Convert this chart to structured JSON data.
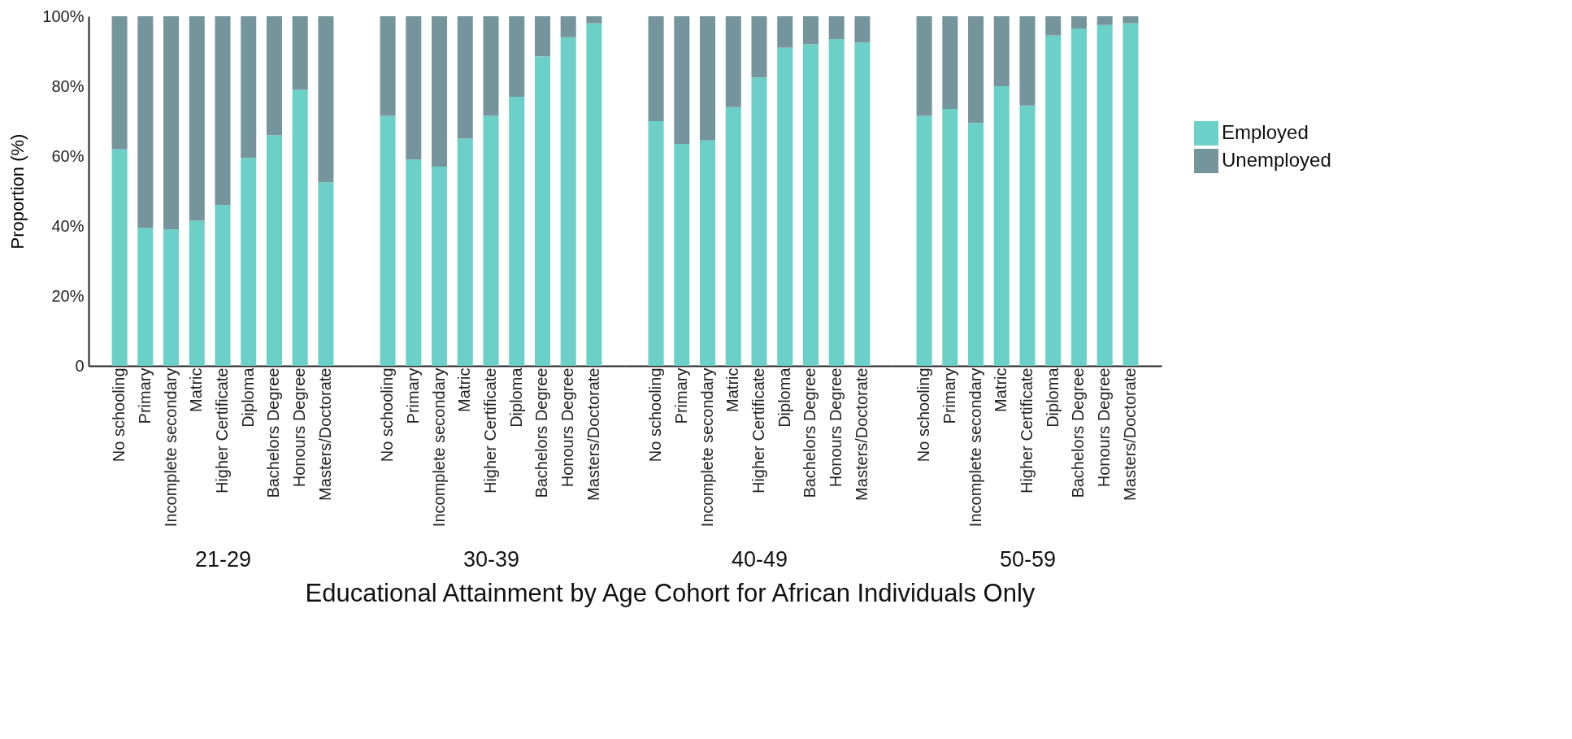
{
  "chart_data": [
    {
      "type": "bar",
      "stacked": true,
      "legend": "right",
      "xlabel": "21-29",
      "ylabel": "Proportion (%)",
      "annotations": [
        "Educational Attainment by Age Cohort for African Individuals Only"
      ],
      "categories": [
        "No schooling",
        "Primary",
        "Incomplete secondary",
        "Matric",
        "Higher Certificate",
        "Diploma",
        "Bachelors Degree",
        "Honours Degree",
        "Masters/Doctorate"
      ],
      "ylim": [
        0,
        100
      ],
      "yticks": [
        0,
        {
          "value": 20,
          "label": "20%"
        },
        {
          "value": 40,
          "label": "40%"
        },
        {
          "value": 60,
          "label": "60%"
        },
        {
          "value": 80,
          "label": "80%"
        },
        {
          "value": 100,
          "label": "100%"
        }
      ],
      "series": [
        {
          "name": "Employed",
          "color": "#6ad0c8",
          "values": [
            62,
            39.5,
            39,
            41.5,
            46,
            59.5,
            66,
            79,
            52.5
          ]
        },
        {
          "name": "Unemployed",
          "color": "#75959d",
          "values": [
            38,
            60.5,
            61,
            58.5,
            54,
            40.5,
            34,
            21,
            47.5
          ]
        }
      ]
    },
    {
      "type": "bar",
      "stacked": true,
      "xlabel": "30-39",
      "tick_labels": "x",
      "categories": [
        "No schooling",
        "Primary",
        "Incomplete secondary",
        "Matric",
        "Higher Certificate",
        "Diploma",
        "Bachelors Degree",
        "Honours Degree",
        "Masters/Doctorate"
      ],
      "ylim": [
        0,
        100
      ],
      "series": [
        {
          "name": "Employed",
          "color": "#6ad0c8",
          "values": [
            71.5,
            59,
            57,
            65,
            71.5,
            77,
            88.5,
            94,
            98
          ]
        },
        {
          "name": "Unemployed",
          "color": "#75959d",
          "values": [
            28.5,
            41,
            43,
            35,
            28.5,
            23,
            11.5,
            6,
            2
          ]
        }
      ]
    },
    {
      "type": "bar",
      "stacked": true,
      "xlabel": "40-49",
      "tick_labels": "x",
      "categories": [
        "No schooling",
        "Primary",
        "Incomplete secondary",
        "Matric",
        "Higher Certificate",
        "Diploma",
        "Bachelors Degree",
        "Honours Degree",
        "Masters/Doctorate"
      ],
      "ylim": [
        0,
        100
      ],
      "series": [
        {
          "name": "Employed",
          "color": "#6ad0c8",
          "values": [
            70,
            63.5,
            64.5,
            74,
            82.5,
            91,
            92,
            93.5,
            92.5
          ]
        },
        {
          "name": "Unemployed",
          "color": "#75959d",
          "values": [
            30,
            36.5,
            35.5,
            26,
            17.5,
            9,
            8,
            6.5,
            7.5
          ]
        }
      ]
    },
    {
      "type": "bar",
      "stacked": true,
      "xlabel": "50-59",
      "tick_labels": "x",
      "categories": [
        "No schooling",
        "Primary",
        "Incomplete secondary",
        "Matric",
        "Higher Certificate",
        "Diploma",
        "Bachelors Degree",
        "Honours Degree",
        "Masters/Doctorate"
      ],
      "ylim": [
        0,
        100
      ],
      "series": [
        {
          "name": "Employed",
          "color": "#6ad0c8",
          "values": [
            71.5,
            73.5,
            69.5,
            80,
            74.5,
            94.5,
            96.5,
            97.5,
            98
          ]
        },
        {
          "name": "Unemployed",
          "color": "#75959d",
          "values": [
            28.5,
            26.5,
            30.5,
            20,
            25.5,
            5.5,
            3.5,
            2.5,
            2
          ]
        }
      ]
    }
  ]
}
